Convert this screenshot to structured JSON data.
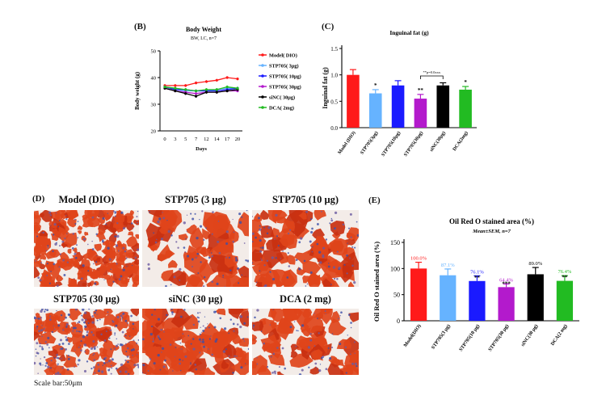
{
  "panel_labels": {
    "B": "(B)",
    "C": "(C)",
    "D": "(D)",
    "E": "(E)"
  },
  "histology": {
    "titles": [
      "Model (DIO)",
      "STP705 (3 μg)",
      "STP705 (10 μg)",
      "STP705 (30 μg)",
      "siNC (30 μg)",
      "DCA (2 mg)"
    ],
    "scale_bar": "Scale bar:50μm"
  },
  "colors": {
    "model": "#ff1a1a",
    "stp3": "#66b3ff",
    "stp10": "#1a1aff",
    "stp30": "#b31acc",
    "sinc": "#000000",
    "dca": "#22bb22",
    "tissue_red": "#e0441a"
  },
  "chart_data": [
    {
      "id": "body-weight",
      "type": "line",
      "title": "Body Weight",
      "subtitle": "BW, I.C, n=7",
      "xlabel": "Days",
      "ylabel": "Body weight (g)",
      "x": [
        "0",
        "3",
        "5",
        "7",
        "12",
        "14",
        "17",
        "20"
      ],
      "ylim": [
        20,
        50
      ],
      "yticks": [
        "20",
        "30",
        "40",
        "50"
      ],
      "legend_position": "right",
      "series": [
        {
          "name": "Model( DIO)",
          "color_key": "model",
          "values": [
            37,
            37,
            37,
            38,
            38.5,
            39,
            40,
            39.5
          ]
        },
        {
          "name": "STP705( 3μg)",
          "color_key": "stp3",
          "values": [
            36.5,
            35.5,
            35,
            35,
            35,
            35.5,
            36,
            36
          ]
        },
        {
          "name": "STP705( 10μg)",
          "color_key": "stp10",
          "values": [
            36.5,
            35.5,
            35.5,
            35,
            35,
            35,
            35.5,
            36
          ]
        },
        {
          "name": "STP705( 30μg)",
          "color_key": "stp30",
          "values": [
            36,
            35,
            34.5,
            34,
            34.5,
            34.5,
            35,
            35
          ]
        },
        {
          "name": "siNC( 30μg)",
          "color_key": "sinc",
          "values": [
            36,
            35,
            34,
            33,
            34.5,
            34.5,
            35,
            35.5
          ]
        },
        {
          "name": "DCA( 2mg)",
          "color_key": "dca",
          "values": [
            36.5,
            36,
            35.5,
            35,
            35.5,
            35.5,
            36.5,
            36
          ]
        }
      ]
    },
    {
      "id": "inguinal-fat",
      "type": "bar",
      "title": "Inguinal fat (g)",
      "ylabel": "Inguinal fat (g)",
      "ylim": [
        0,
        1.5
      ],
      "yticks": [
        "0.0",
        "0.5",
        "1.0",
        "1.5"
      ],
      "categories": [
        "Model (DIO)",
        "STP705(3μg)",
        "STP705(10μg)",
        "STP705(30μg)",
        "siNC(30μg)",
        "DCA(2mg)"
      ],
      "color_keys": [
        "model",
        "stp3",
        "stp10",
        "stp30",
        "sinc",
        "dca"
      ],
      "values": [
        1.0,
        0.65,
        0.8,
        0.55,
        0.8,
        0.72
      ],
      "errors": [
        0.1,
        0.07,
        0.09,
        0.08,
        0.05,
        0.06
      ],
      "significance": [
        "",
        "*",
        "",
        "**",
        "",
        "*"
      ],
      "bracket_label": "**p=0.0xxx"
    },
    {
      "id": "oil-red-o",
      "type": "bar",
      "title": "Oil Red O stained area (%)",
      "subtitle": "Mean±SEM, n=7",
      "ylabel": "Oil Red O stained area (%)",
      "ylim": [
        0,
        150
      ],
      "yticks": [
        "0",
        "50",
        "100",
        "150"
      ],
      "categories": [
        "Model(DIO)",
        "STP705(3 μg)",
        "STP705(10 μg)",
        "STP705(30 μg)",
        "siNC(30 μg)",
        "DCA(2 mg)"
      ],
      "color_keys": [
        "model",
        "stp3",
        "stp10",
        "stp30",
        "sinc",
        "dca"
      ],
      "values": [
        100.0,
        87.1,
        76.1,
        64.4,
        89.0,
        76.4
      ],
      "errors": [
        12,
        12,
        10,
        6,
        13,
        10
      ],
      "data_labels": [
        "100.0%",
        "87.1%",
        "76.1%",
        "64.4%",
        "89.0%",
        "76.4%"
      ],
      "significance": [
        "",
        "",
        "**",
        "***",
        "",
        "**"
      ]
    }
  ]
}
